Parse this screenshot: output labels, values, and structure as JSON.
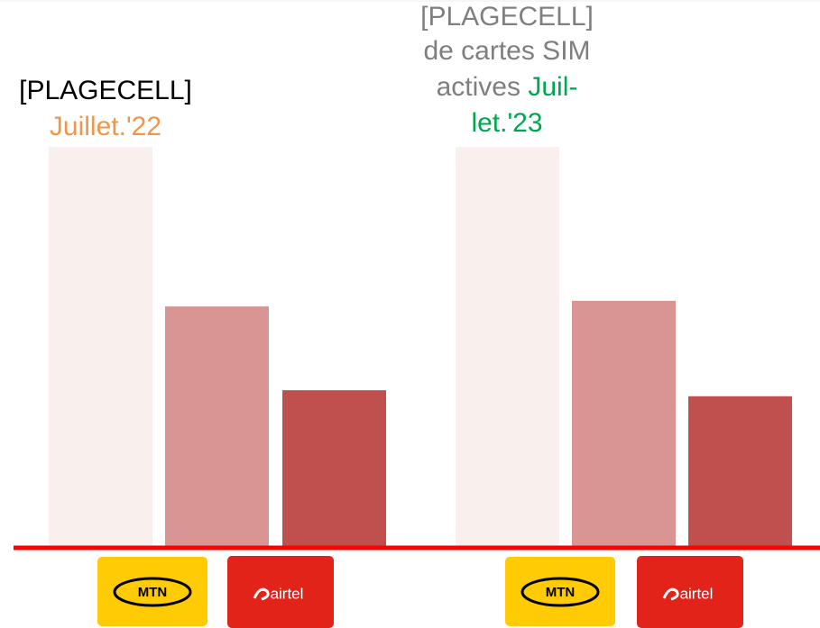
{
  "chart_data": [
    {
      "type": "bar",
      "title_lines": [
        [
          {
            "text": "[PLAGECELL]",
            "color": "#000000"
          }
        ],
        [
          {
            "text": "Juillet.'22",
            "color": "#f0964a"
          }
        ]
      ],
      "categories": [
        null,
        "MTN",
        "airtel"
      ],
      "values": [
        100,
        60.2,
        39.3
      ],
      "colors": [
        "#f9efed",
        "#d99594",
        "#c0504d"
      ],
      "ylim": [
        0,
        100
      ]
    },
    {
      "type": "bar",
      "title_lines": [
        [
          {
            "text": "[PLAGECELL]",
            "color": "#7f7f7f"
          }
        ],
        [
          {
            "text": "de cartes SIM",
            "color": "#7f7f7f"
          }
        ],
        [
          {
            "text": "actives ",
            "color": "#7f7f7f"
          },
          {
            "text": "Juil-",
            "color": "#00a651"
          }
        ],
        [
          {
            "text": "let.'23",
            "color": "#00a651"
          }
        ]
      ],
      "categories": [
        null,
        "MTN",
        "airtel"
      ],
      "values": [
        100,
        61.6,
        37.8
      ],
      "colors": [
        "#f9efed",
        "#d99594",
        "#c0504d"
      ],
      "ylim": [
        0,
        100
      ]
    }
  ]
}
